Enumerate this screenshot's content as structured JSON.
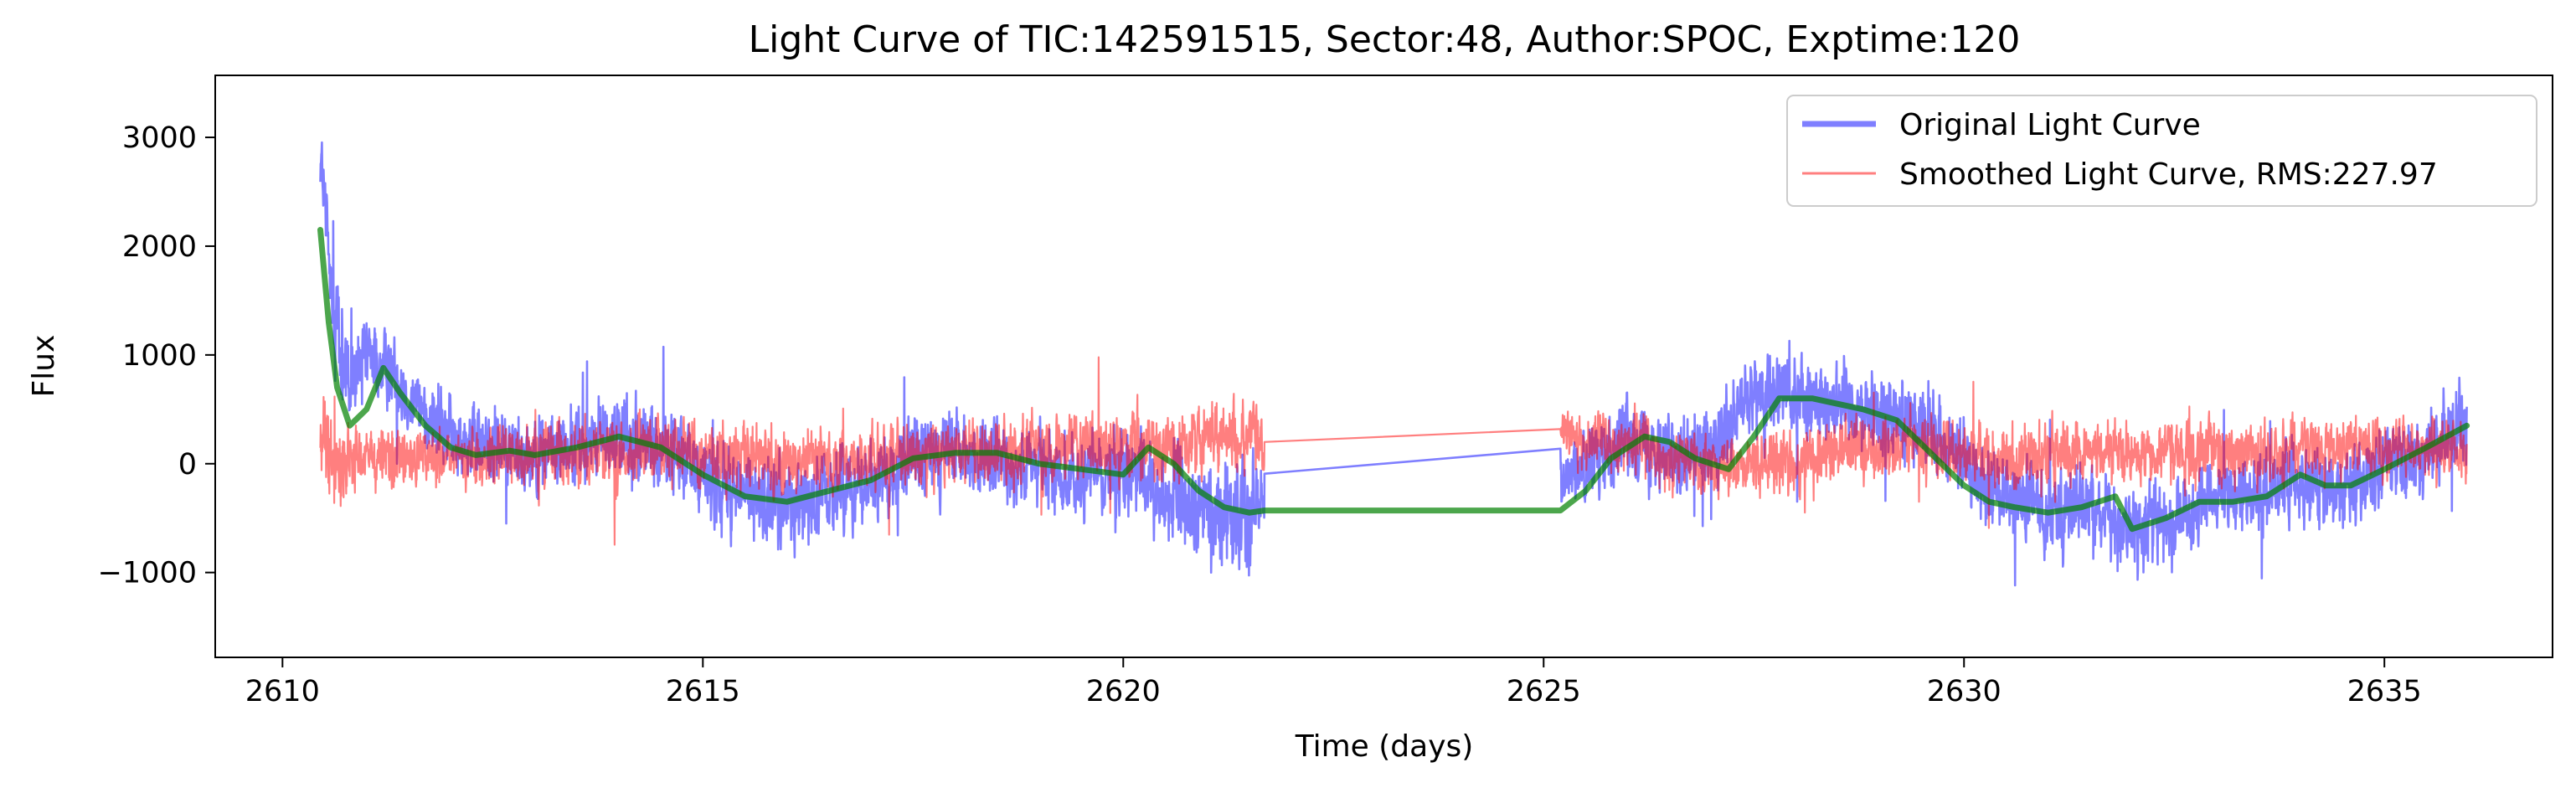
{
  "chart_data": {
    "type": "line",
    "title": "Light Curve of TIC:142591515, Sector:48, Author:SPOC, Exptime:120",
    "xlabel": "Time (days)",
    "ylabel": "Flux",
    "xlim": [
      2609.2,
      2637.0
    ],
    "ylim": [
      -1780,
      3570
    ],
    "x_ticks": [
      2610,
      2615,
      2620,
      2625,
      2630,
      2635
    ],
    "x_tick_labels": [
      "2610",
      "2615",
      "2620",
      "2625",
      "2630",
      "2635"
    ],
    "y_ticks": [
      -1000,
      0,
      1000,
      2000,
      3000
    ],
    "y_tick_labels": [
      "−1000",
      "0",
      "1000",
      "2000",
      "3000"
    ],
    "grid": false,
    "legend": {
      "placement": "upper right",
      "entries": [
        "Original Light Curve",
        "Smoothed Light Curve, RMS:227.97"
      ]
    },
    "series": [
      {
        "name": "Original Light Curve",
        "color": "#0000ff",
        "opacity": 0.5,
        "x": [
          2610.45,
          2610.6,
          2610.8,
          2611.0,
          2611.3,
          2611.7,
          2612.0,
          2612.5,
          2613.0,
          2613.5,
          2614.0,
          2614.5,
          2615.0,
          2615.5,
          2616.0,
          2616.5,
          2617.0,
          2617.5,
          2618.0,
          2618.5,
          2619.0,
          2619.5,
          2620.0,
          2620.5,
          2621.0,
          2621.5,
          2621.68,
          2625.2,
          2625.4,
          2625.7,
          2626.0,
          2626.5,
          2627.0,
          2627.5,
          2628.0,
          2628.5,
          2629.0,
          2629.5,
          2630.0,
          2630.5,
          2631.0,
          2631.5,
          2632.0,
          2632.5,
          2633.0,
          2633.5,
          2634.0,
          2634.5,
          2635.0,
          2635.5,
          2635.98
        ],
        "y": [
          2900,
          1400,
          700,
          950,
          850,
          450,
          250,
          150,
          100,
          150,
          250,
          150,
          -100,
          -300,
          -350,
          -250,
          -150,
          50,
          100,
          0,
          -50,
          -150,
          -50,
          -300,
          -450,
          -450,
          -200,
          -130,
          -50,
          50,
          300,
          100,
          100,
          600,
          650,
          550,
          500,
          350,
          0,
          -350,
          -400,
          -400,
          -600,
          -500,
          -350,
          -300,
          -150,
          -250,
          0,
          100,
          350
        ],
        "amp": [
          450,
          650,
          520,
          440,
          400,
          400,
          420,
          420,
          420,
          430,
          440,
          460,
          480,
          480,
          450,
          440,
          440,
          430,
          420,
          420,
          430,
          450,
          470,
          500,
          550,
          600,
          320,
          320,
          380,
          400,
          420,
          440,
          450,
          460,
          460,
          460,
          440,
          430,
          430,
          440,
          450,
          450,
          450,
          440,
          440,
          440,
          430,
          430,
          430,
          420,
          420
        ]
      },
      {
        "name": "Smoothed Light Curve, RMS:227.97",
        "color": "#ff0000",
        "opacity": 0.5,
        "x": [
          2610.45,
          2610.7,
          2611.0,
          2611.5,
          2612.0,
          2612.5,
          2613.0,
          2613.5,
          2614.0,
          2614.5,
          2615.0,
          2615.5,
          2616.0,
          2616.5,
          2617.0,
          2617.5,
          2618.0,
          2618.5,
          2619.0,
          2619.5,
          2620.0,
          2620.5,
          2621.0,
          2621.68,
          2625.2,
          2625.6,
          2626.0,
          2626.5,
          2627.0,
          2627.5,
          2628.0,
          2628.5,
          2629.0,
          2629.5,
          2630.0,
          2630.5,
          2631.0,
          2631.5,
          2632.0,
          2632.5,
          2633.0,
          2633.5,
          2634.0,
          2634.5,
          2635.0,
          2635.5,
          2635.98
        ],
        "y": [
          200,
          0,
          50,
          50,
          50,
          50,
          50,
          100,
          100,
          150,
          100,
          50,
          0,
          50,
          50,
          100,
          100,
          100,
          150,
          150,
          150,
          150,
          200,
          250,
          300,
          200,
          200,
          50,
          -50,
          0,
          0,
          100,
          150,
          150,
          100,
          50,
          100,
          100,
          100,
          100,
          100,
          100,
          150,
          150,
          150,
          100,
          100
        ],
        "amp": [
          550,
          420,
          340,
          300,
          320,
          340,
          350,
          360,
          370,
          380,
          380,
          360,
          350,
          340,
          340,
          340,
          340,
          340,
          340,
          350,
          360,
          380,
          420,
          380,
          300,
          330,
          340,
          340,
          340,
          330,
          320,
          330,
          340,
          340,
          340,
          340,
          340,
          330,
          330,
          330,
          330,
          330,
          330,
          330,
          330,
          330,
          330
        ]
      },
      {
        "name": "",
        "color": "#008000",
        "opacity": 0.7,
        "x": [
          2610.45,
          2610.55,
          2610.65,
          2610.8,
          2611.0,
          2611.2,
          2611.4,
          2611.7,
          2612.0,
          2612.3,
          2612.7,
          2613.0,
          2613.5,
          2614.0,
          2614.5,
          2615.0,
          2615.5,
          2616.0,
          2616.5,
          2617.0,
          2617.5,
          2618.0,
          2618.5,
          2619.0,
          2619.5,
          2620.0,
          2620.3,
          2620.6,
          2620.9,
          2621.2,
          2621.5,
          2621.68,
          2625.2,
          2625.5,
          2625.8,
          2626.2,
          2626.5,
          2626.8,
          2627.2,
          2627.5,
          2627.8,
          2628.2,
          2628.5,
          2628.8,
          2629.2,
          2629.6,
          2630.0,
          2630.3,
          2630.6,
          2631.0,
          2631.4,
          2631.8,
          2632.0,
          2632.4,
          2632.8,
          2633.2,
          2633.6,
          2634.0,
          2634.3,
          2634.6,
          2635.0,
          2635.5,
          2635.98
        ],
        "y": [
          2150,
          1300,
          700,
          350,
          500,
          880,
          650,
          350,
          150,
          80,
          120,
          80,
          150,
          250,
          150,
          -100,
          -300,
          -350,
          -250,
          -150,
          50,
          100,
          100,
          0,
          -50,
          -100,
          150,
          0,
          -250,
          -400,
          -450,
          -430,
          -430,
          -250,
          50,
          250,
          200,
          50,
          -50,
          250,
          600,
          600,
          550,
          500,
          400,
          100,
          -200,
          -350,
          -400,
          -450,
          -400,
          -300,
          -600,
          -500,
          -350,
          -350,
          -300,
          -100,
          -200,
          -200,
          -50,
          150,
          350
        ]
      }
    ]
  }
}
